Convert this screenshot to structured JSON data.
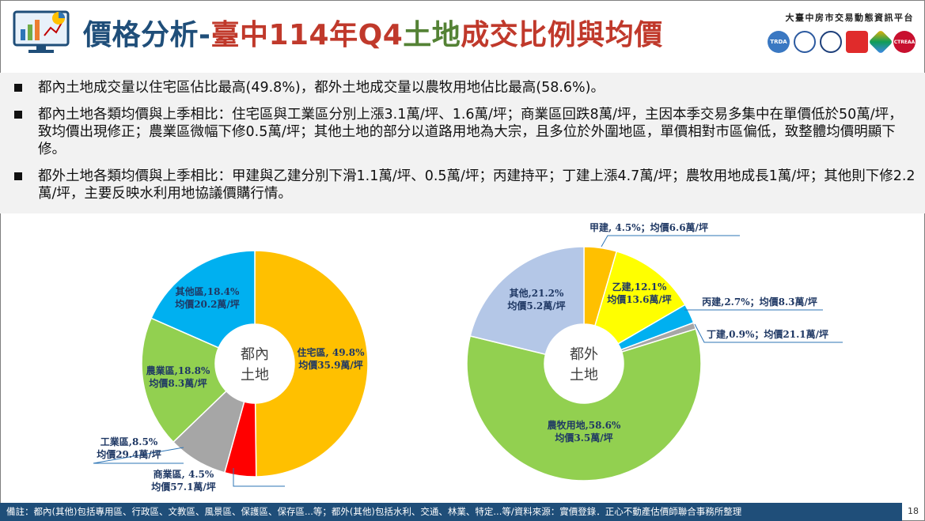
{
  "header": {
    "title_part1": "價格分析-",
    "title_part2": "臺中114年Q4",
    "title_part3": "土地",
    "title_part4": "成交比例與均價",
    "org_name": "大臺中房市交易動態資訊平台",
    "logos": [
      "TRDA",
      "",
      "",
      "",
      "",
      "CTREAA"
    ]
  },
  "bullets": [
    "都內土地成交量以住宅區佔比最高(49.8%)，都外土地成交量以農牧用地佔比最高(58.6%)。",
    "都內土地各類均價與上季相比：住宅區與工業區分別上漲3.1萬/坪、1.6萬/坪；商業區回跌8萬/坪，主因本季交易多集中在單價低於50萬/坪，致均價出現修正；農業區微幅下修0.5萬/坪；其他土地的部分以道路用地為大宗，且多位於外圍地區，單價相對市區偏低，致整體均價明顯下修。",
    "都外土地各類均價與上季相比：甲建與乙建分別下滑1.1萬/坪、0.5萬/坪；丙建持平；丁建上漲4.7萬/坪；農牧用地成長1萬/坪；其他則下修2.2萬/坪，主要反映水利用地協議價購行情。"
  ],
  "chart_data": [
    {
      "type": "pie",
      "center_label": [
        "都內",
        "土地"
      ],
      "slices": [
        {
          "name": "住宅區",
          "pct": 49.8,
          "price": 35.9,
          "label1": "住宅區, 49.8%",
          "label2": "均價35.9萬/坪",
          "color": "#ffc000"
        },
        {
          "name": "商業區",
          "pct": 4.5,
          "price": 57.1,
          "label1": "商業區, 4.5%",
          "label2": "均價57.1萬/坪",
          "color": "#ff0000"
        },
        {
          "name": "工業區",
          "pct": 8.5,
          "price": 29.4,
          "label1": "工業區,8.5%",
          "label2": "均價29.4萬/坪",
          "color": "#a6a6a6"
        },
        {
          "name": "農業區",
          "pct": 18.8,
          "price": 8.3,
          "label1": "農業區,18.8%",
          "label2": "均價8.3萬/坪",
          "color": "#92d050"
        },
        {
          "name": "其他區",
          "pct": 18.4,
          "price": 20.2,
          "label1": "其他區,18.4%",
          "label2": "均價20.2萬/坪",
          "color": "#00b0f0"
        }
      ]
    },
    {
      "type": "pie",
      "center_label": [
        "都外",
        "土地"
      ],
      "slices": [
        {
          "name": "甲建",
          "pct": 4.5,
          "price": 6.6,
          "label1": "甲建, 4.5%；均價6.6萬/坪",
          "label2": "",
          "color": "#ffc000"
        },
        {
          "name": "乙建",
          "pct": 12.1,
          "price": 13.6,
          "label1": "乙建,12.1%",
          "label2": "均價13.6萬/坪",
          "color": "#ffff00"
        },
        {
          "name": "丙建",
          "pct": 2.7,
          "price": 8.3,
          "label1": "丙建,2.7%；均價8.3萬/坪",
          "label2": "",
          "color": "#00b0f0"
        },
        {
          "name": "丁建",
          "pct": 0.9,
          "price": 21.1,
          "label1": "丁建,0.9%；均價21.1萬/坪",
          "label2": "",
          "color": "#a6a6a6"
        },
        {
          "name": "農牧用地",
          "pct": 58.6,
          "price": 3.5,
          "label1": "農牧用地,58.6%",
          "label2": "均價3.5萬/坪",
          "color": "#92d050"
        },
        {
          "name": "其他",
          "pct": 21.2,
          "price": 5.2,
          "label1": "其他,21.2%",
          "label2": "均價5.2萬/坪",
          "color": "#b4c7e7"
        }
      ]
    }
  ],
  "footer": {
    "note": "備註：都內(其他)包括專用區、行政區、文教區、風景區、保護區、保存區...等；都外(其他)包括水利、交通、林業、特定...等/資料來源：實價登錄．正心不動產估價師聯合事務所整理",
    "page_number": "18"
  }
}
